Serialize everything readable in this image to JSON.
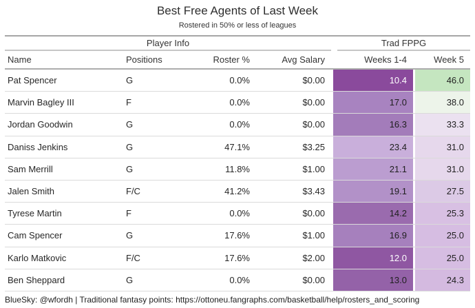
{
  "title": "Best Free Agents of Last Week",
  "subtitle": "Rostered in 50% or less of leagues",
  "table": {
    "group_headers": [
      {
        "label": "Player Info",
        "span": 4
      },
      {
        "label": "Trad FPPG",
        "span": 2
      }
    ],
    "columns": {
      "name": "Name",
      "positions": "Positions",
      "roster_pct": "Roster %",
      "avg_salary": "Avg Salary",
      "weeks_1_4": "Weeks 1-4",
      "week_5": "Week 5"
    },
    "rows": [
      {
        "name": "Pat Spencer",
        "positions": "G",
        "roster_pct": "0.0%",
        "avg_salary": "$0.00",
        "weeks_1_4": "10.4",
        "week_5": "46.0",
        "w14_bg": "#8a4a9c",
        "w14_fg": "#ffffff",
        "w5_bg": "#c5e6c0",
        "w5_fg": "#1f1f1f"
      },
      {
        "name": "Marvin Bagley III",
        "positions": "F",
        "roster_pct": "0.0%",
        "avg_salary": "$0.00",
        "weeks_1_4": "17.0",
        "week_5": "38.0",
        "w14_bg": "#a883c0",
        "w14_fg": "#1f1f1f",
        "w5_bg": "#edf4ea",
        "w5_fg": "#1f1f1f"
      },
      {
        "name": "Jordan Goodwin",
        "positions": "G",
        "roster_pct": "0.0%",
        "avg_salary": "$0.00",
        "weeks_1_4": "16.3",
        "week_5": "33.3",
        "w14_bg": "#a37cba",
        "w14_fg": "#1f1f1f",
        "w5_bg": "#ebe1f0",
        "w5_fg": "#1f1f1f"
      },
      {
        "name": "Daniss Jenkins",
        "positions": "G",
        "roster_pct": "47.1%",
        "avg_salary": "$3.25",
        "weeks_1_4": "23.4",
        "week_5": "31.0",
        "w14_bg": "#c9afdb",
        "w14_fg": "#1f1f1f",
        "w5_bg": "#e6d8ec",
        "w5_fg": "#1f1f1f"
      },
      {
        "name": "Sam Merrill",
        "positions": "G",
        "roster_pct": "11.8%",
        "avg_salary": "$1.00",
        "weeks_1_4": "21.1",
        "week_5": "31.0",
        "w14_bg": "#bb9dd0",
        "w14_fg": "#1f1f1f",
        "w5_bg": "#e6d8ec",
        "w5_fg": "#1f1f1f"
      },
      {
        "name": "Jalen Smith",
        "positions": "F/C",
        "roster_pct": "41.2%",
        "avg_salary": "$3.43",
        "weeks_1_4": "19.1",
        "week_5": "27.5",
        "w14_bg": "#b291c8",
        "w14_fg": "#1f1f1f",
        "w5_bg": "#dccae6",
        "w5_fg": "#1f1f1f"
      },
      {
        "name": "Tyrese Martin",
        "positions": "F",
        "roster_pct": "0.0%",
        "avg_salary": "$0.00",
        "weeks_1_4": "14.2",
        "week_5": "25.3",
        "w14_bg": "#9a6bae",
        "w14_fg": "#1f1f1f",
        "w5_bg": "#d8c0e3",
        "w5_fg": "#1f1f1f"
      },
      {
        "name": "Cam Spencer",
        "positions": "G",
        "roster_pct": "17.6%",
        "avg_salary": "$1.00",
        "weeks_1_4": "16.9",
        "week_5": "25.0",
        "w14_bg": "#a680bd",
        "w14_fg": "#1f1f1f",
        "w5_bg": "#d6bde2",
        "w5_fg": "#1f1f1f"
      },
      {
        "name": "Karlo Matkovic",
        "positions": "F/C",
        "roster_pct": "17.6%",
        "avg_salary": "$2.00",
        "weeks_1_4": "12.0",
        "week_5": "25.0",
        "w14_bg": "#8f57a2",
        "w14_fg": "#ffffff",
        "w5_bg": "#d6bde2",
        "w5_fg": "#1f1f1f"
      },
      {
        "name": "Ben Sheppard",
        "positions": "G",
        "roster_pct": "0.0%",
        "avg_salary": "$0.00",
        "weeks_1_4": "13.0",
        "week_5": "24.3",
        "w14_bg": "#9462a8",
        "w14_fg": "#1f1f1f",
        "w5_bg": "#d4bae0",
        "w5_fg": "#1f1f1f"
      }
    ]
  },
  "footer": "BlueSky: @wfordh | Traditional fantasy points: https://ottoneu.fangraphs.com/basketball/help/rosters_and_scoring",
  "colors": {
    "heat_low_purple": "#8a4a9c",
    "heat_high_green": "#c5e6c0",
    "text": "#262626",
    "rule_dark": "#a6a6a6",
    "rule_light": "#dadada"
  },
  "chart_data": {
    "type": "table",
    "title": "Best Free Agents of Last Week",
    "subtitle": "Rostered in 50% or less of leagues",
    "column_groups": [
      {
        "label": "Player Info",
        "columns": [
          "Name",
          "Positions",
          "Roster %",
          "Avg Salary"
        ]
      },
      {
        "label": "Trad FPPG",
        "columns": [
          "Weeks 1-4",
          "Week 5"
        ]
      }
    ],
    "heatmap_columns": [
      "Weeks 1-4",
      "Week 5"
    ],
    "rows": [
      {
        "name": "Pat Spencer",
        "positions": "G",
        "roster_pct": 0.0,
        "avg_salary": 0.0,
        "fppg_weeks_1_4": 10.4,
        "fppg_week_5": 46.0
      },
      {
        "name": "Marvin Bagley III",
        "positions": "F",
        "roster_pct": 0.0,
        "avg_salary": 0.0,
        "fppg_weeks_1_4": 17.0,
        "fppg_week_5": 38.0
      },
      {
        "name": "Jordan Goodwin",
        "positions": "G",
        "roster_pct": 0.0,
        "avg_salary": 0.0,
        "fppg_weeks_1_4": 16.3,
        "fppg_week_5": 33.3
      },
      {
        "name": "Daniss Jenkins",
        "positions": "G",
        "roster_pct": 47.1,
        "avg_salary": 3.25,
        "fppg_weeks_1_4": 23.4,
        "fppg_week_5": 31.0
      },
      {
        "name": "Sam Merrill",
        "positions": "G",
        "roster_pct": 11.8,
        "avg_salary": 1.0,
        "fppg_weeks_1_4": 21.1,
        "fppg_week_5": 31.0
      },
      {
        "name": "Jalen Smith",
        "positions": "F/C",
        "roster_pct": 41.2,
        "avg_salary": 3.43,
        "fppg_weeks_1_4": 19.1,
        "fppg_week_5": 27.5
      },
      {
        "name": "Tyrese Martin",
        "positions": "F",
        "roster_pct": 0.0,
        "avg_salary": 0.0,
        "fppg_weeks_1_4": 14.2,
        "fppg_week_5": 25.3
      },
      {
        "name": "Cam Spencer",
        "positions": "G",
        "roster_pct": 17.6,
        "avg_salary": 1.0,
        "fppg_weeks_1_4": 16.9,
        "fppg_week_5": 25.0
      },
      {
        "name": "Karlo Matkovic",
        "positions": "F/C",
        "roster_pct": 17.6,
        "avg_salary": 2.0,
        "fppg_weeks_1_4": 12.0,
        "fppg_week_5": 25.0
      },
      {
        "name": "Ben Sheppard",
        "positions": "G",
        "roster_pct": 0.0,
        "avg_salary": 0.0,
        "fppg_weeks_1_4": 13.0,
        "fppg_week_5": 24.3
      }
    ]
  }
}
